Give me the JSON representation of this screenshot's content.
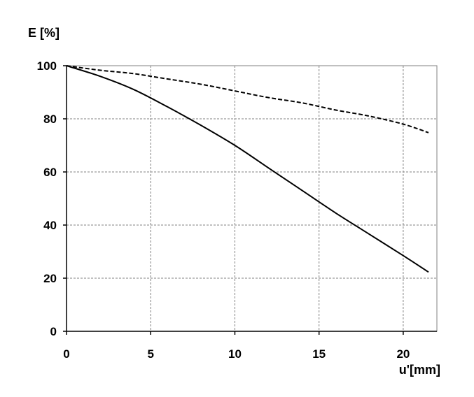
{
  "chart_data": {
    "type": "line",
    "ylabel": "E [%]",
    "xlabel": "u'[mm]",
    "xlim": [
      0,
      22
    ],
    "ylim": [
      0,
      100
    ],
    "x_ticks": [
      0,
      5,
      10,
      15,
      20
    ],
    "y_ticks": [
      0,
      20,
      40,
      60,
      80,
      100
    ],
    "grid": true,
    "legend": "none",
    "series": [
      {
        "style": "dashed",
        "color": "#000000",
        "points": [
          [
            0,
            100
          ],
          [
            2,
            98.3
          ],
          [
            4,
            97
          ],
          [
            6,
            95
          ],
          [
            8,
            93
          ],
          [
            10,
            90.5
          ],
          [
            12,
            88
          ],
          [
            14,
            86
          ],
          [
            16,
            83.3
          ],
          [
            18,
            81
          ],
          [
            20,
            78
          ],
          [
            21.5,
            74.8
          ]
        ]
      },
      {
        "style": "solid",
        "color": "#000000",
        "points": [
          [
            0,
            100
          ],
          [
            2,
            96
          ],
          [
            4,
            91
          ],
          [
            6,
            84.5
          ],
          [
            8,
            77.5
          ],
          [
            10,
            70
          ],
          [
            12,
            61.5
          ],
          [
            14,
            53
          ],
          [
            16,
            44.5
          ],
          [
            18,
            36.5
          ],
          [
            20,
            28.5
          ],
          [
            21.5,
            22.3
          ]
        ]
      }
    ]
  }
}
